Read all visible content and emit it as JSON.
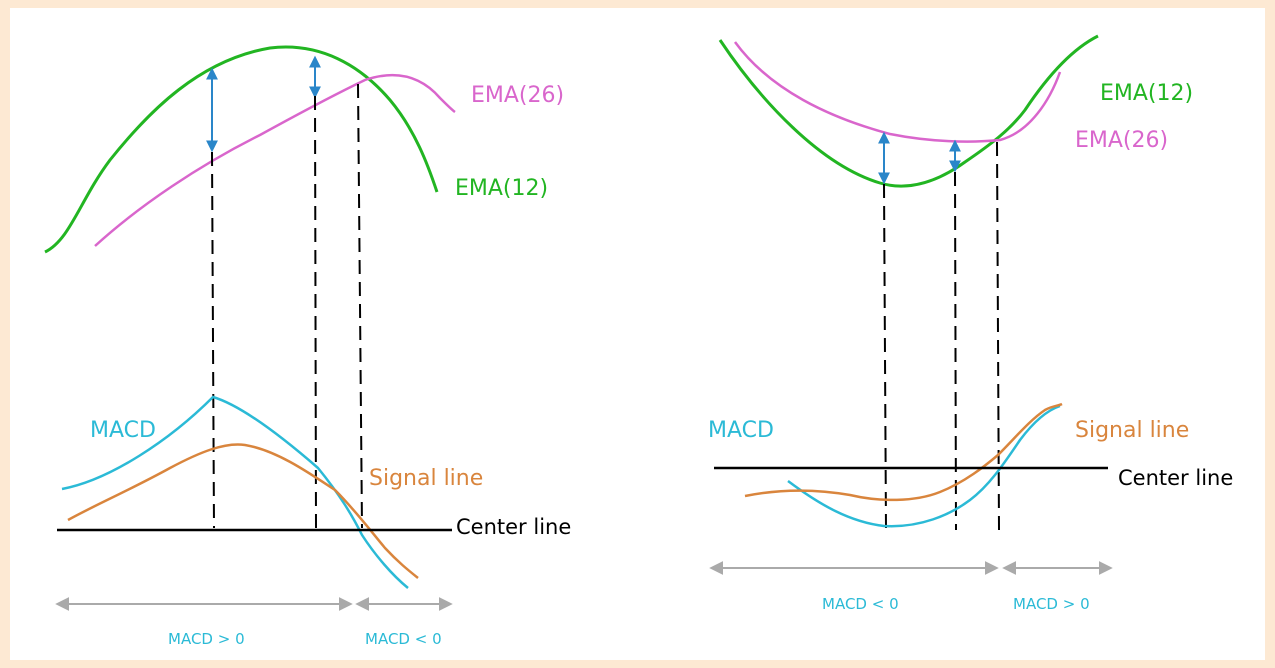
{
  "colors": {
    "background_border": "#fde9d3",
    "ema12": "#22b522",
    "ema26": "#d966cc",
    "macd": "#2bbad6",
    "signal": "#d9853d",
    "center_line": "#000000",
    "arrow": "#2a86c9",
    "range_arrow": "#aaaaaa",
    "range_text": "#2bbad6"
  },
  "left_panel": {
    "ema26_label": "EMA(26)",
    "ema12_label": "EMA(12)",
    "macd_label": "MACD",
    "signal_label": "Signal line",
    "center_label": "Center line",
    "range_positive": "MACD > 0",
    "range_negative": "MACD < 0"
  },
  "right_panel": {
    "ema12_label": "EMA(12)",
    "ema26_label": "EMA(26)",
    "macd_label": "MACD",
    "signal_label": "Signal line",
    "center_label": "Center line",
    "range_negative": "MACD < 0",
    "range_positive": "MACD > 0"
  }
}
